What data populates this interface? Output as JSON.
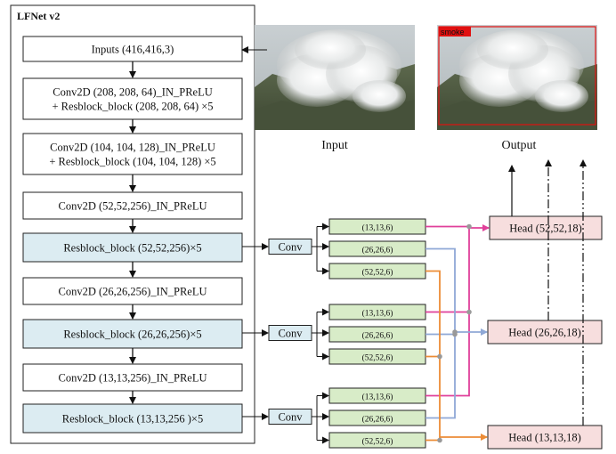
{
  "panel_title": "LFNet v2",
  "backbone": [
    {
      "lines": [
        "Inputs (416,416,3)"
      ],
      "highlight": false
    },
    {
      "lines": [
        "Conv2D (208, 208, 64)_IN_PReLU",
        "+ Resblock_block (208, 208, 64) ×5"
      ],
      "highlight": false
    },
    {
      "lines": [
        "Conv2D (104, 104, 128)_IN_PReLU",
        "+ Resblock_block (104, 104, 128) ×5"
      ],
      "highlight": false
    },
    {
      "lines": [
        "Conv2D (52,52,256)_IN_PReLU"
      ],
      "highlight": false
    },
    {
      "lines": [
        "Resblock_block (52,52,256)×5"
      ],
      "highlight": true
    },
    {
      "lines": [
        "Conv2D (26,26,256)_IN_PReLU"
      ],
      "highlight": false
    },
    {
      "lines": [
        "Resblock_block (26,26,256)×5"
      ],
      "highlight": true
    },
    {
      "lines": [
        "Conv2D (13,13,256)_IN_PReLU"
      ],
      "highlight": false
    },
    {
      "lines": [
        "Resblock_block (13,13,256 )×5"
      ],
      "highlight": true
    }
  ],
  "conv_label": "Conv",
  "feature_groups": [
    [
      "(13,13,6)",
      "(26,26,6)",
      "(52,52,6)"
    ],
    [
      "(13,13,6)",
      "(26,26,6)",
      "(52,52,6)"
    ],
    [
      "(13,13,6)",
      "(26,26,6)",
      "(52,52,6)"
    ]
  ],
  "heads": [
    "Head (52,52,18)",
    "Head (26,26,18)",
    "Head (13,13,18)"
  ],
  "image_labels": {
    "input": "Input",
    "output": "Output",
    "detection": "smoke"
  },
  "colors": {
    "highlight_fill": "#dcecf2",
    "feature_fill": "#d8ecc8",
    "head_fill": "#f7dede",
    "magenta": "#e0409a",
    "blue": "#8fa8d6",
    "orange": "#ec8c36",
    "detection_box": "#e01010"
  }
}
